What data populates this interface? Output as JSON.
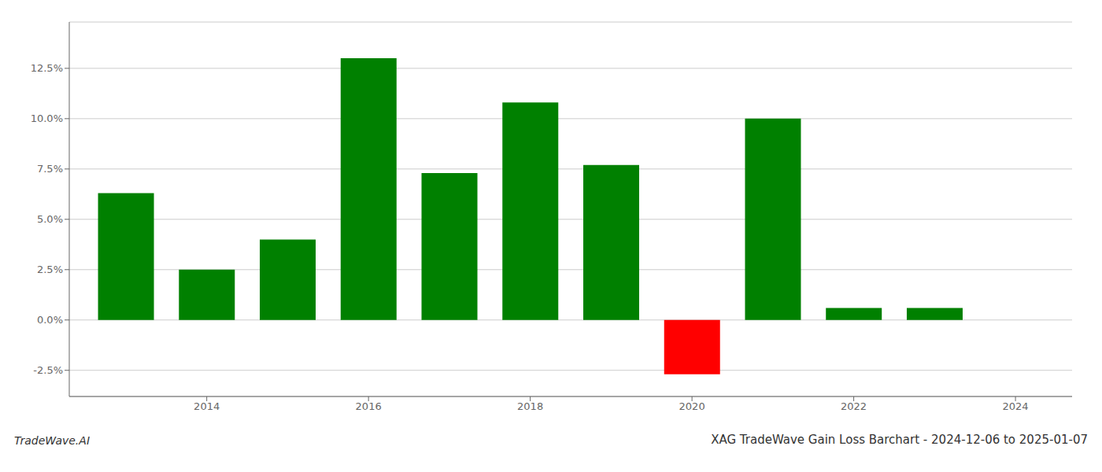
{
  "chart_data": {
    "type": "bar",
    "title": "XAG TradeWave Gain Loss Barchart - 2024-12-06 to 2025-01-07",
    "annotations": [
      "TradeWave.AI"
    ],
    "x": [
      2013,
      2014,
      2015,
      2016,
      2017,
      2018,
      2019,
      2020,
      2021,
      2022,
      2023
    ],
    "values": [
      0.063,
      0.025,
      0.04,
      0.13,
      0.073,
      0.108,
      0.077,
      -0.027,
      0.1,
      0.006,
      0.006
    ],
    "colors": [
      "#008000",
      "#008000",
      "#008000",
      "#008000",
      "#008000",
      "#008000",
      "#008000",
      "#ff0000",
      "#008000",
      "#008000",
      "#008000"
    ],
    "xlim": [
      2012.3,
      2024.7
    ],
    "xticks": [
      2014,
      2016,
      2018,
      2020,
      2022,
      2024
    ],
    "ylim": [
      -0.038,
      0.148
    ],
    "yticks": [
      {
        "value": -0.025,
        "label": "-2.5%"
      },
      {
        "value": 0.0,
        "label": "0.0%"
      },
      {
        "value": 0.025,
        "label": "2.5%"
      },
      {
        "value": 0.05,
        "label": "5.0%"
      },
      {
        "value": 0.075,
        "label": "7.5%"
      },
      {
        "value": 0.1,
        "label": "10.0%"
      },
      {
        "value": 0.125,
        "label": "12.5%"
      }
    ],
    "grid": true
  }
}
